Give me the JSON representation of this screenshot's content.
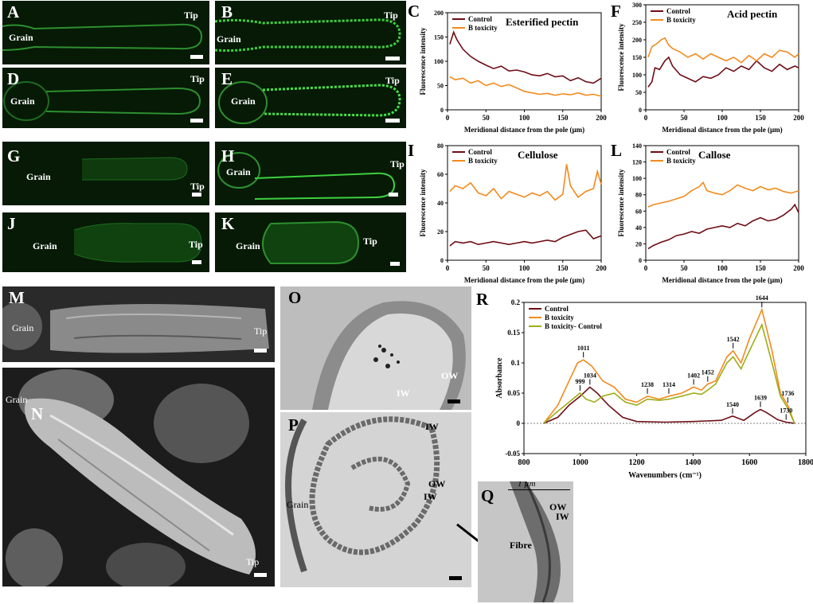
{
  "labels": {
    "A": "A",
    "B": "B",
    "C": "C",
    "D": "D",
    "E": "E",
    "F": "F",
    "G": "G",
    "H": "H",
    "I": "I",
    "J": "J",
    "K": "K",
    "L": "L",
    "M": "M",
    "N": "N",
    "O": "O",
    "P": "P",
    "Q": "Q",
    "R": "R"
  },
  "tags": {
    "grain": "Grain",
    "tip": "Tip",
    "ow": "OW",
    "iw": "IW",
    "fibre": "Fibre",
    "um": "1 µm"
  },
  "colors": {
    "control": "#6e0d15",
    "btox": "#f28a1e",
    "diff": "#9fad17"
  },
  "chart_data": [
    {
      "id": "C",
      "type": "line",
      "title": "Esterified pectin",
      "xlabel": "Meridional distance from the pole (µm)",
      "ylabel": "Fluorescence intensity",
      "xlim": [
        0,
        200
      ],
      "ylim": [
        0,
        200
      ],
      "xticks": [
        0,
        50,
        100,
        150,
        200
      ],
      "yticks": [
        0,
        50,
        100,
        150,
        200
      ],
      "legend": "top-left",
      "series": [
        {
          "name": "Control",
          "x": [
            3,
            8,
            12,
            20,
            30,
            40,
            50,
            60,
            70,
            80,
            90,
            100,
            110,
            120,
            130,
            140,
            150,
            160,
            170,
            180,
            190,
            200
          ],
          "values": [
            135,
            160,
            145,
            125,
            110,
            100,
            92,
            85,
            90,
            80,
            82,
            78,
            72,
            70,
            75,
            68,
            70,
            60,
            66,
            58,
            55,
            65
          ]
        },
        {
          "name": "B toxicity",
          "x": [
            3,
            10,
            20,
            30,
            40,
            50,
            60,
            70,
            80,
            90,
            100,
            110,
            120,
            130,
            140,
            150,
            160,
            170,
            180,
            190,
            200
          ],
          "values": [
            68,
            62,
            65,
            55,
            60,
            50,
            55,
            48,
            52,
            45,
            38,
            35,
            32,
            34,
            30,
            33,
            31,
            35,
            30,
            32,
            28
          ]
        }
      ]
    },
    {
      "id": "F",
      "type": "line",
      "title": "Acid pectin",
      "xlabel": "Meridional distance from the pole (µm)",
      "ylabel": "Fluorescence intensity",
      "xlim": [
        0,
        200
      ],
      "ylim": [
        0,
        300
      ],
      "xticks": [
        0,
        50,
        100,
        150,
        200
      ],
      "yticks": [
        0,
        50,
        100,
        150,
        200,
        250,
        300
      ],
      "legend": "top-left",
      "series": [
        {
          "name": "Control",
          "x": [
            3,
            8,
            12,
            18,
            25,
            30,
            35,
            45,
            55,
            65,
            75,
            85,
            95,
            105,
            115,
            125,
            135,
            145,
            155,
            165,
            175,
            185,
            195,
            200
          ],
          "values": [
            65,
            80,
            120,
            115,
            140,
            150,
            125,
            100,
            90,
            80,
            95,
            90,
            100,
            120,
            110,
            125,
            115,
            140,
            120,
            110,
            130,
            115,
            125,
            120
          ]
        },
        {
          "name": "B toxicity",
          "x": [
            3,
            8,
            15,
            20,
            25,
            30,
            35,
            45,
            55,
            65,
            75,
            85,
            95,
            105,
            115,
            125,
            135,
            145,
            155,
            165,
            175,
            185,
            195,
            200
          ],
          "values": [
            150,
            180,
            190,
            200,
            205,
            185,
            175,
            165,
            150,
            160,
            145,
            160,
            150,
            140,
            150,
            135,
            155,
            140,
            160,
            150,
            170,
            165,
            150,
            160
          ]
        }
      ]
    },
    {
      "id": "I",
      "type": "line",
      "title": "Cellulose",
      "xlabel": "Meridional distance from the pole (µm)",
      "ylabel": "Fluorescence intensity",
      "xlim": [
        0,
        200
      ],
      "ylim": [
        0,
        80
      ],
      "xticks": [
        0,
        50,
        100,
        150,
        200
      ],
      "yticks": [
        0,
        20,
        40,
        60,
        80
      ],
      "legend": "top-left",
      "series": [
        {
          "name": "Control",
          "x": [
            3,
            10,
            20,
            30,
            40,
            50,
            60,
            70,
            80,
            90,
            100,
            110,
            120,
            130,
            140,
            150,
            160,
            170,
            180,
            190,
            200
          ],
          "values": [
            10,
            13,
            12,
            13,
            11,
            12,
            13,
            12,
            11,
            12,
            13,
            12,
            13,
            14,
            13,
            16,
            18,
            20,
            21,
            15,
            17
          ]
        },
        {
          "name": "B toxicity",
          "x": [
            3,
            10,
            20,
            30,
            40,
            50,
            60,
            70,
            80,
            90,
            100,
            110,
            120,
            130,
            140,
            150,
            155,
            160,
            170,
            180,
            190,
            195,
            200
          ],
          "values": [
            48,
            52,
            50,
            54,
            47,
            45,
            50,
            43,
            48,
            46,
            44,
            47,
            45,
            48,
            42,
            46,
            67,
            52,
            44,
            48,
            50,
            62,
            53
          ]
        }
      ]
    },
    {
      "id": "L",
      "type": "line",
      "title": "Callose",
      "xlabel": "Meridional distance from the pole (µm)",
      "ylabel": "Fluorescence intensity",
      "xlim": [
        0,
        200
      ],
      "ylim": [
        0,
        140
      ],
      "xticks": [
        0,
        50,
        100,
        150,
        200
      ],
      "yticks": [
        0,
        20,
        40,
        60,
        80,
        100,
        120,
        140
      ],
      "legend": "top-left",
      "series": [
        {
          "name": "Control",
          "x": [
            3,
            10,
            20,
            30,
            40,
            50,
            60,
            70,
            80,
            90,
            100,
            110,
            120,
            130,
            140,
            150,
            160,
            170,
            180,
            190,
            195,
            200
          ],
          "values": [
            14,
            18,
            22,
            25,
            30,
            32,
            35,
            33,
            38,
            40,
            42,
            40,
            45,
            42,
            48,
            52,
            48,
            50,
            55,
            62,
            68,
            58
          ]
        },
        {
          "name": "B toxicity",
          "x": [
            3,
            10,
            20,
            30,
            40,
            50,
            60,
            70,
            75,
            80,
            90,
            100,
            110,
            120,
            130,
            140,
            150,
            160,
            170,
            180,
            190,
            200
          ],
          "values": [
            65,
            68,
            70,
            72,
            75,
            78,
            85,
            90,
            95,
            85,
            82,
            80,
            85,
            92,
            88,
            85,
            90,
            86,
            88,
            84,
            82,
            85
          ]
        }
      ]
    },
    {
      "id": "R",
      "type": "line",
      "title": "",
      "xlabel": "Wavenumbers (cm⁻¹)",
      "ylabel": "Absorbance",
      "xlim": [
        800,
        1800
      ],
      "ylim": [
        -0.05,
        0.2
      ],
      "xticks": [
        800,
        1000,
        1200,
        1400,
        1600,
        1800
      ],
      "yticks": [
        -0.05,
        0,
        0.05,
        0.1,
        0.15,
        0.2
      ],
      "legend": "top-left",
      "series": [
        {
          "name": "Control",
          "x": [
            870,
            920,
            960,
            1000,
            1034,
            1060,
            1100,
            1150,
            1200,
            1300,
            1400,
            1500,
            1540,
            1580,
            1620,
            1639,
            1660,
            1700,
            1730,
            1760
          ],
          "values": [
            0,
            0.01,
            0.03,
            0.045,
            0.06,
            0.05,
            0.03,
            0.01,
            0.003,
            0.002,
            0.003,
            0.005,
            0.012,
            0.005,
            0.018,
            0.023,
            0.018,
            0.006,
            0.002,
            0
          ]
        },
        {
          "name": "B toxicity",
          "x": [
            870,
            920,
            960,
            990,
            1011,
            1040,
            1080,
            1120,
            1160,
            1200,
            1238,
            1280,
            1314,
            1360,
            1402,
            1430,
            1452,
            1480,
            1520,
            1542,
            1570,
            1600,
            1644,
            1680,
            1710,
            1736,
            1760
          ],
          "values": [
            0,
            0.03,
            0.07,
            0.1,
            0.105,
            0.095,
            0.07,
            0.06,
            0.04,
            0.035,
            0.045,
            0.04,
            0.045,
            0.05,
            0.06,
            0.055,
            0.065,
            0.07,
            0.11,
            0.12,
            0.1,
            0.14,
            0.188,
            0.12,
            0.05,
            0.03,
            0
          ]
        },
        {
          "name": "B toxicity- Control",
          "x": [
            870,
            920,
            960,
            999,
            1020,
            1050,
            1080,
            1120,
            1160,
            1200,
            1238,
            1280,
            1314,
            1360,
            1402,
            1430,
            1452,
            1480,
            1520,
            1542,
            1570,
            1600,
            1644,
            1680,
            1710,
            1736,
            1760
          ],
          "values": [
            0,
            0.02,
            0.035,
            0.05,
            0.04,
            0.035,
            0.045,
            0.05,
            0.035,
            0.03,
            0.04,
            0.038,
            0.04,
            0.045,
            0.05,
            0.048,
            0.055,
            0.065,
            0.1,
            0.11,
            0.09,
            0.12,
            0.163,
            0.1,
            0.045,
            0.025,
            0
          ]
        }
      ],
      "annotations": [
        {
          "x": 1011,
          "y": 0.105,
          "text": "1011"
        },
        {
          "x": 999,
          "y": 0.05,
          "text": "999"
        },
        {
          "x": 1034,
          "y": 0.06,
          "text": "1034"
        },
        {
          "x": 1238,
          "y": 0.045,
          "text": "1238"
        },
        {
          "x": 1314,
          "y": 0.045,
          "text": "1314"
        },
        {
          "x": 1402,
          "y": 0.06,
          "text": "1402"
        },
        {
          "x": 1452,
          "y": 0.065,
          "text": "1452"
        },
        {
          "x": 1542,
          "y": 0.12,
          "text": "1542"
        },
        {
          "x": 1644,
          "y": 0.188,
          "text": "1644"
        },
        {
          "x": 1540,
          "y": 0.012,
          "text": "1540"
        },
        {
          "x": 1639,
          "y": 0.023,
          "text": "1639"
        },
        {
          "x": 1736,
          "y": 0.03,
          "text": "1736"
        },
        {
          "x": 1730,
          "y": 0.002,
          "text": "1730"
        }
      ]
    }
  ]
}
